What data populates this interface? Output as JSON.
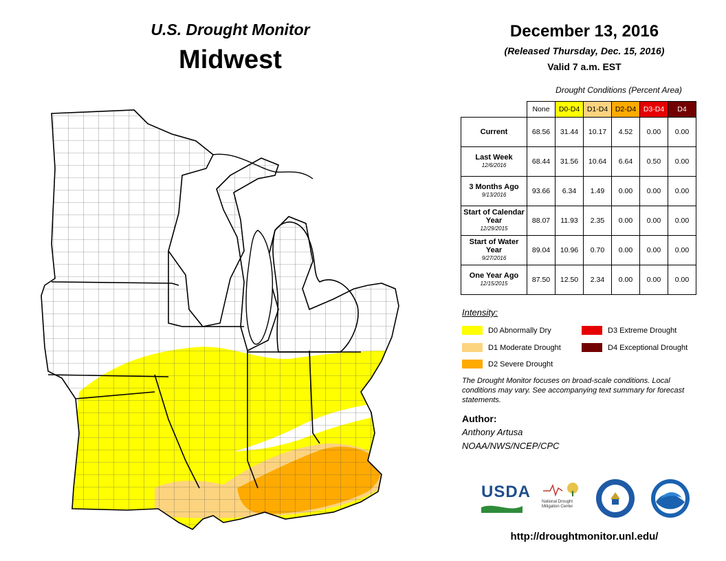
{
  "header": {
    "title_line1": "U.S. Drought Monitor",
    "title_line2": "Midwest",
    "date": "December 13, 2016",
    "released": "(Released Thursday, Dec. 15, 2016)",
    "valid": "Valid  7 a.m. EST"
  },
  "table": {
    "title": "Drought Conditions (Percent Area)",
    "columns": [
      "None",
      "D0-D4",
      "D1-D4",
      "D2-D4",
      "D3-D4",
      "D4"
    ],
    "rows": [
      {
        "label": "Current",
        "sublabel": "",
        "values": [
          "68.56",
          "31.44",
          "10.17",
          "4.52",
          "0.00",
          "0.00"
        ]
      },
      {
        "label": "Last Week",
        "sublabel": "12/6/2016",
        "values": [
          "68.44",
          "31.56",
          "10.64",
          "6.64",
          "0.50",
          "0.00"
        ]
      },
      {
        "label": "3 Months Ago",
        "sublabel": "9/13/2016",
        "values": [
          "93.66",
          "6.34",
          "1.49",
          "0.00",
          "0.00",
          "0.00"
        ]
      },
      {
        "label": "Start of Calendar Year",
        "sublabel": "12/29/2015",
        "values": [
          "88.07",
          "11.93",
          "2.35",
          "0.00",
          "0.00",
          "0.00"
        ]
      },
      {
        "label": "Start of Water Year",
        "sublabel": "9/27/2016",
        "values": [
          "89.04",
          "10.96",
          "0.70",
          "0.00",
          "0.00",
          "0.00"
        ]
      },
      {
        "label": "One Year Ago",
        "sublabel": "12/15/2015",
        "values": [
          "87.50",
          "12.50",
          "2.34",
          "0.00",
          "0.00",
          "0.00"
        ]
      }
    ]
  },
  "legend": {
    "title": "Intensity:",
    "items": [
      {
        "label": "D0 Abnormally Dry",
        "color": "#ffff00"
      },
      {
        "label": "D1 Moderate Drought",
        "color": "#fcd37f"
      },
      {
        "label": "D2 Severe Drought",
        "color": "#ffaa00"
      },
      {
        "label": "D3 Extreme Drought",
        "color": "#e60000"
      },
      {
        "label": "D4 Exceptional Drought",
        "color": "#730000"
      }
    ]
  },
  "note": "The Drought Monitor focuses on broad-scale conditions. Local conditions may vary. See accompanying text summary for forecast statements.",
  "author": {
    "label": "Author:",
    "name": "Anthony Artusa",
    "org": "NOAA/NWS/NCEP/CPC"
  },
  "logos": {
    "usda": "USDA",
    "ndmc": "National Drought Mitigation Center"
  },
  "url": "http://droughtmonitor.unl.edu/"
}
